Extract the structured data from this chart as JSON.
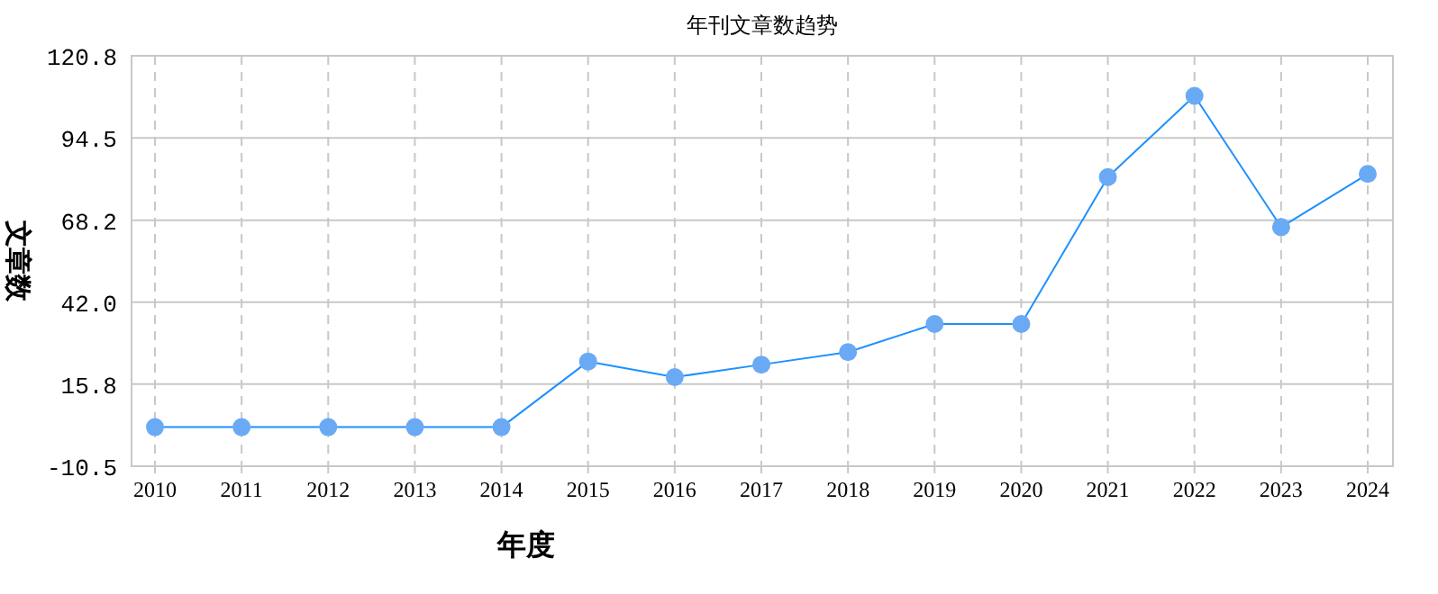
{
  "chart_data": {
    "type": "line",
    "title": "年刊文章数趋势",
    "xlabel": "年度",
    "ylabel": "文章数",
    "categories": [
      "2010",
      "2011",
      "2012",
      "2013",
      "2014",
      "2015",
      "2016",
      "2017",
      "2018",
      "2019",
      "2020",
      "2021",
      "2022",
      "2023",
      "2024"
    ],
    "series": [
      {
        "color": "#1e90ff",
        "values": [
          2,
          2,
          2,
          2,
          2,
          23,
          18,
          22,
          26,
          35,
          35,
          82,
          108,
          66,
          83
        ]
      }
    ],
    "ylim": [
      -10.5,
      120.8
    ],
    "yticks": [
      -10.5,
      15.8,
      {
        "value": 42,
        "label": "42.0"
      },
      68.2,
      94.5,
      120.8
    ],
    "grid": true,
    "marker": "circle",
    "line_style": "solid"
  }
}
